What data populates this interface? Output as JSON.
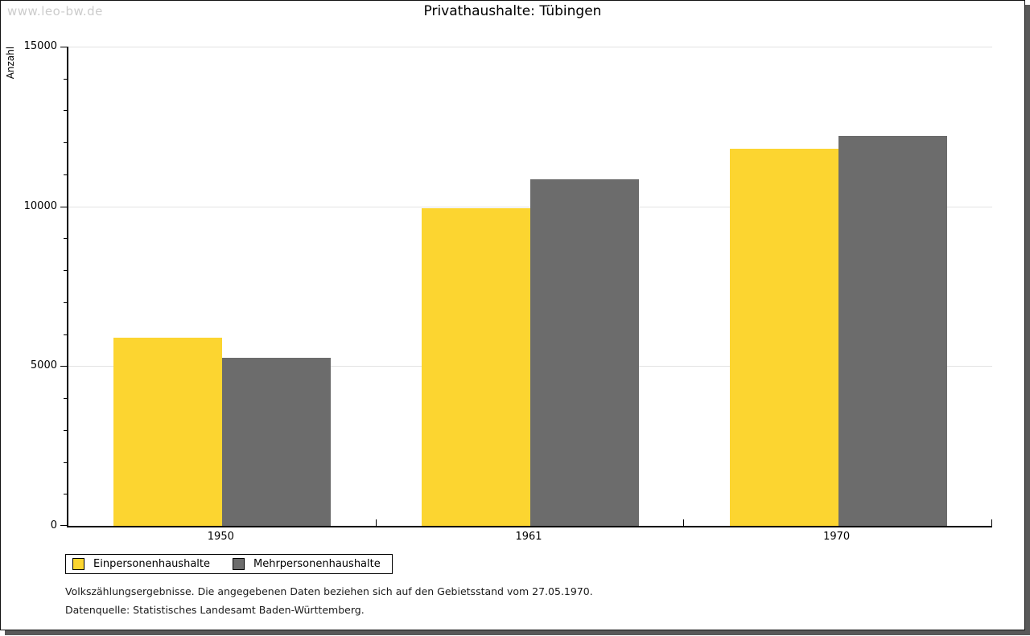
{
  "watermark": "www.leo-bw.de",
  "title": "Privathaushalte: Tübingen",
  "chart_data": {
    "type": "bar",
    "title": "Privathaushalte: Tübingen",
    "categories": [
      "1950",
      "1961",
      "1970"
    ],
    "series": [
      {
        "name": "Einpersonenhaushalte",
        "color": "#fcd530",
        "values": [
          5900,
          9950,
          11800
        ]
      },
      {
        "name": "Mehrpersonenhaushalte",
        "color": "#6c6c6c",
        "values": [
          5250,
          10850,
          12200
        ]
      }
    ],
    "ylabel": "Anzahl",
    "xlabel": "",
    "ylim": [
      0,
      15000
    ],
    "yticks": [
      0,
      5000,
      10000,
      15000
    ],
    "minor_tick_step": 1000,
    "grid": true,
    "legend_position": "bottom-left"
  },
  "footer": {
    "line1": "Volkszählungsergebnisse. Die angegebenen Daten beziehen sich auf den Gebietsstand vom 27.05.1970.",
    "line2": "Datenquelle: Statistisches Landesamt Baden-Württemberg."
  }
}
